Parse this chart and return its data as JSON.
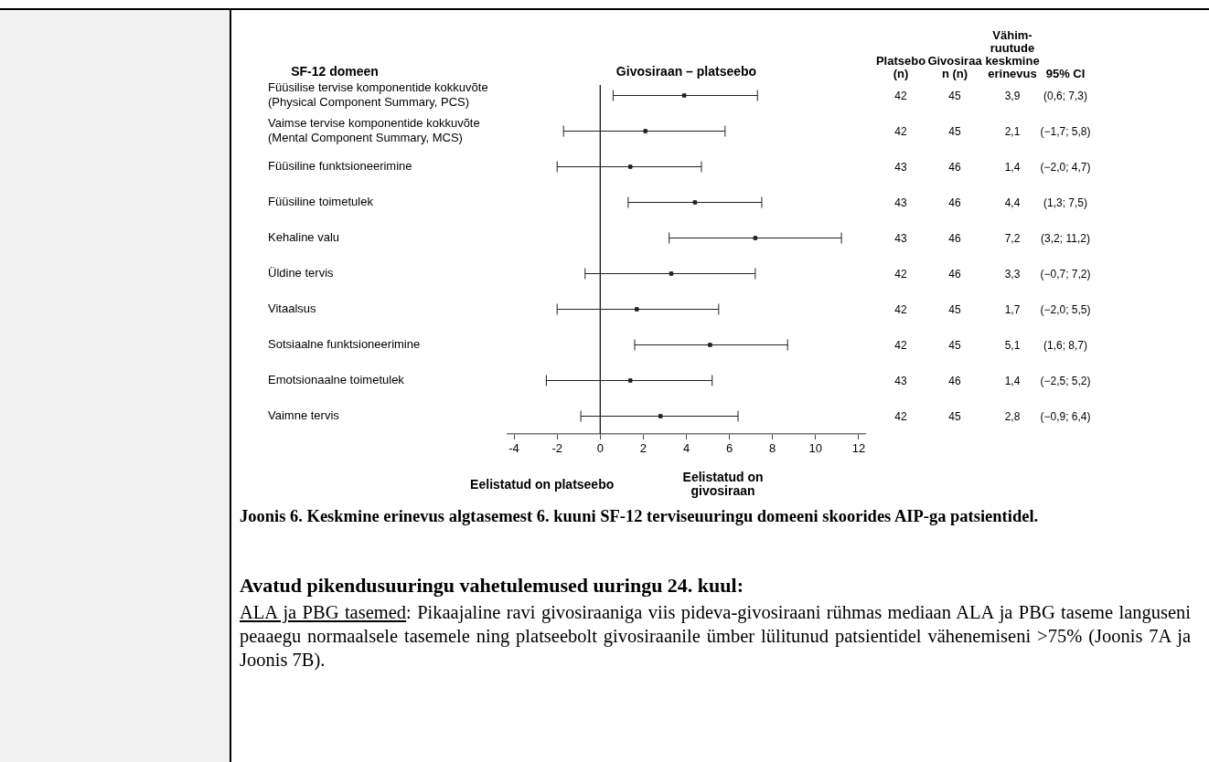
{
  "chart_data": {
    "type": "scatter",
    "orientation": "horizontal",
    "title": "Givosiraan – platseebo",
    "ylabel": "SF-12 domeen",
    "categories": [
      "Füüsilise tervise komponentide kokkuvõte (Physical Component Summary, PCS)",
      "Vaimse tervise komponentide kokkuvõte (Mental Component Summary, MCS)",
      "Füüsiline funktsioneerimine",
      "Füüsiline toimetulek",
      "Kehaline valu",
      "Üldine tervis",
      "Vitaalsus",
      "Sotsiaalne funktsioneerimine",
      "Emotsionaalne toimetulek",
      "Vaimne tervis"
    ],
    "series": [
      {
        "type": "other",
        "name": "Platsebo (n)",
        "values": [
          null,
          null,
          null,
          null,
          null,
          null,
          null,
          null,
          null,
          null
        ],
        "value_labels": [
          "42",
          "42",
          "43",
          "43",
          "43",
          "42",
          "42",
          "42",
          "43",
          "42"
        ]
      },
      {
        "type": "other",
        "name": "Givosiraan (n)",
        "values": [
          null,
          null,
          null,
          null,
          null,
          null,
          null,
          null,
          null,
          null
        ],
        "value_labels": [
          "45",
          "45",
          "46",
          "46",
          "46",
          "46",
          "45",
          "45",
          "46",
          "45"
        ]
      },
      {
        "name": "Vähim-ruutude keskmine erinevus",
        "color": "#222222",
        "values": [
          3.9,
          2.1,
          1.4,
          4.4,
          7.2,
          3.3,
          1.7,
          5.1,
          1.4,
          2.8
        ],
        "errors": [
          [
            0.6,
            7.3
          ],
          [
            -1.7,
            5.8
          ],
          [
            -2.0,
            4.7
          ],
          [
            1.3,
            7.5
          ],
          [
            3.2,
            11.2
          ],
          [
            -0.7,
            7.2
          ],
          [
            -2.0,
            5.5
          ],
          [
            1.6,
            8.7
          ],
          [
            -2.5,
            5.2
          ],
          [
            -0.9,
            6.4
          ]
        ],
        "value_labels": [
          "3,9",
          "2,1",
          "1,4",
          "4,4",
          "7,2",
          "3,3",
          "1,7",
          "5,1",
          "1,4",
          "2,8"
        ]
      },
      {
        "type": "other",
        "name": "95% CI",
        "values": [
          null,
          null,
          null,
          null,
          null,
          null,
          null,
          null,
          null,
          null
        ],
        "value_labels": [
          "(0,6; 7,3)",
          "(−1,7; 5,8)",
          "(−2,0; 4,7)",
          "(1,3; 7,5)",
          "(3,2; 11,2)",
          "(−0,7; 7,2)",
          "(−2,0; 5,5)",
          "(1,6; 8,7)",
          "(−2,5; 5,2)",
          "(−0,9; 6,4)"
        ]
      }
    ],
    "xlim": [
      -4.3,
      12.3
    ],
    "xticks": [
      -4,
      -2,
      0,
      2,
      4,
      6,
      8,
      10,
      12
    ],
    "ref_lines": [
      {
        "axis": "x",
        "value": 0,
        "color": "#000000"
      }
    ],
    "marker": "square",
    "grid": false,
    "legend": false,
    "annotations": [
      "Eelistatud on platseebo",
      "Eelistatud on givosiraan",
      "Joonis 6. Keskmine erinevus algtasemest 6. kuuni SF-12 terviseuuringu domeeni skoorides AIP-ga patsientidel.",
      "Avatud pikendusuuringu vahetulemused uuringu 24. kuul:",
      "ALA ja PBG tasemed",
      ": Pikaajaline ravi givosiraaniga viis pideva-givosiraani rühmas mediaan ALA ja PBG taseme languseni peaaegu normaalsele tasemele ning platseebolt givosiraanile ümber lülitunud patsientidel vähenemiseni >75% (Joonis 7A ja Joonis 7B)."
    ]
  }
}
